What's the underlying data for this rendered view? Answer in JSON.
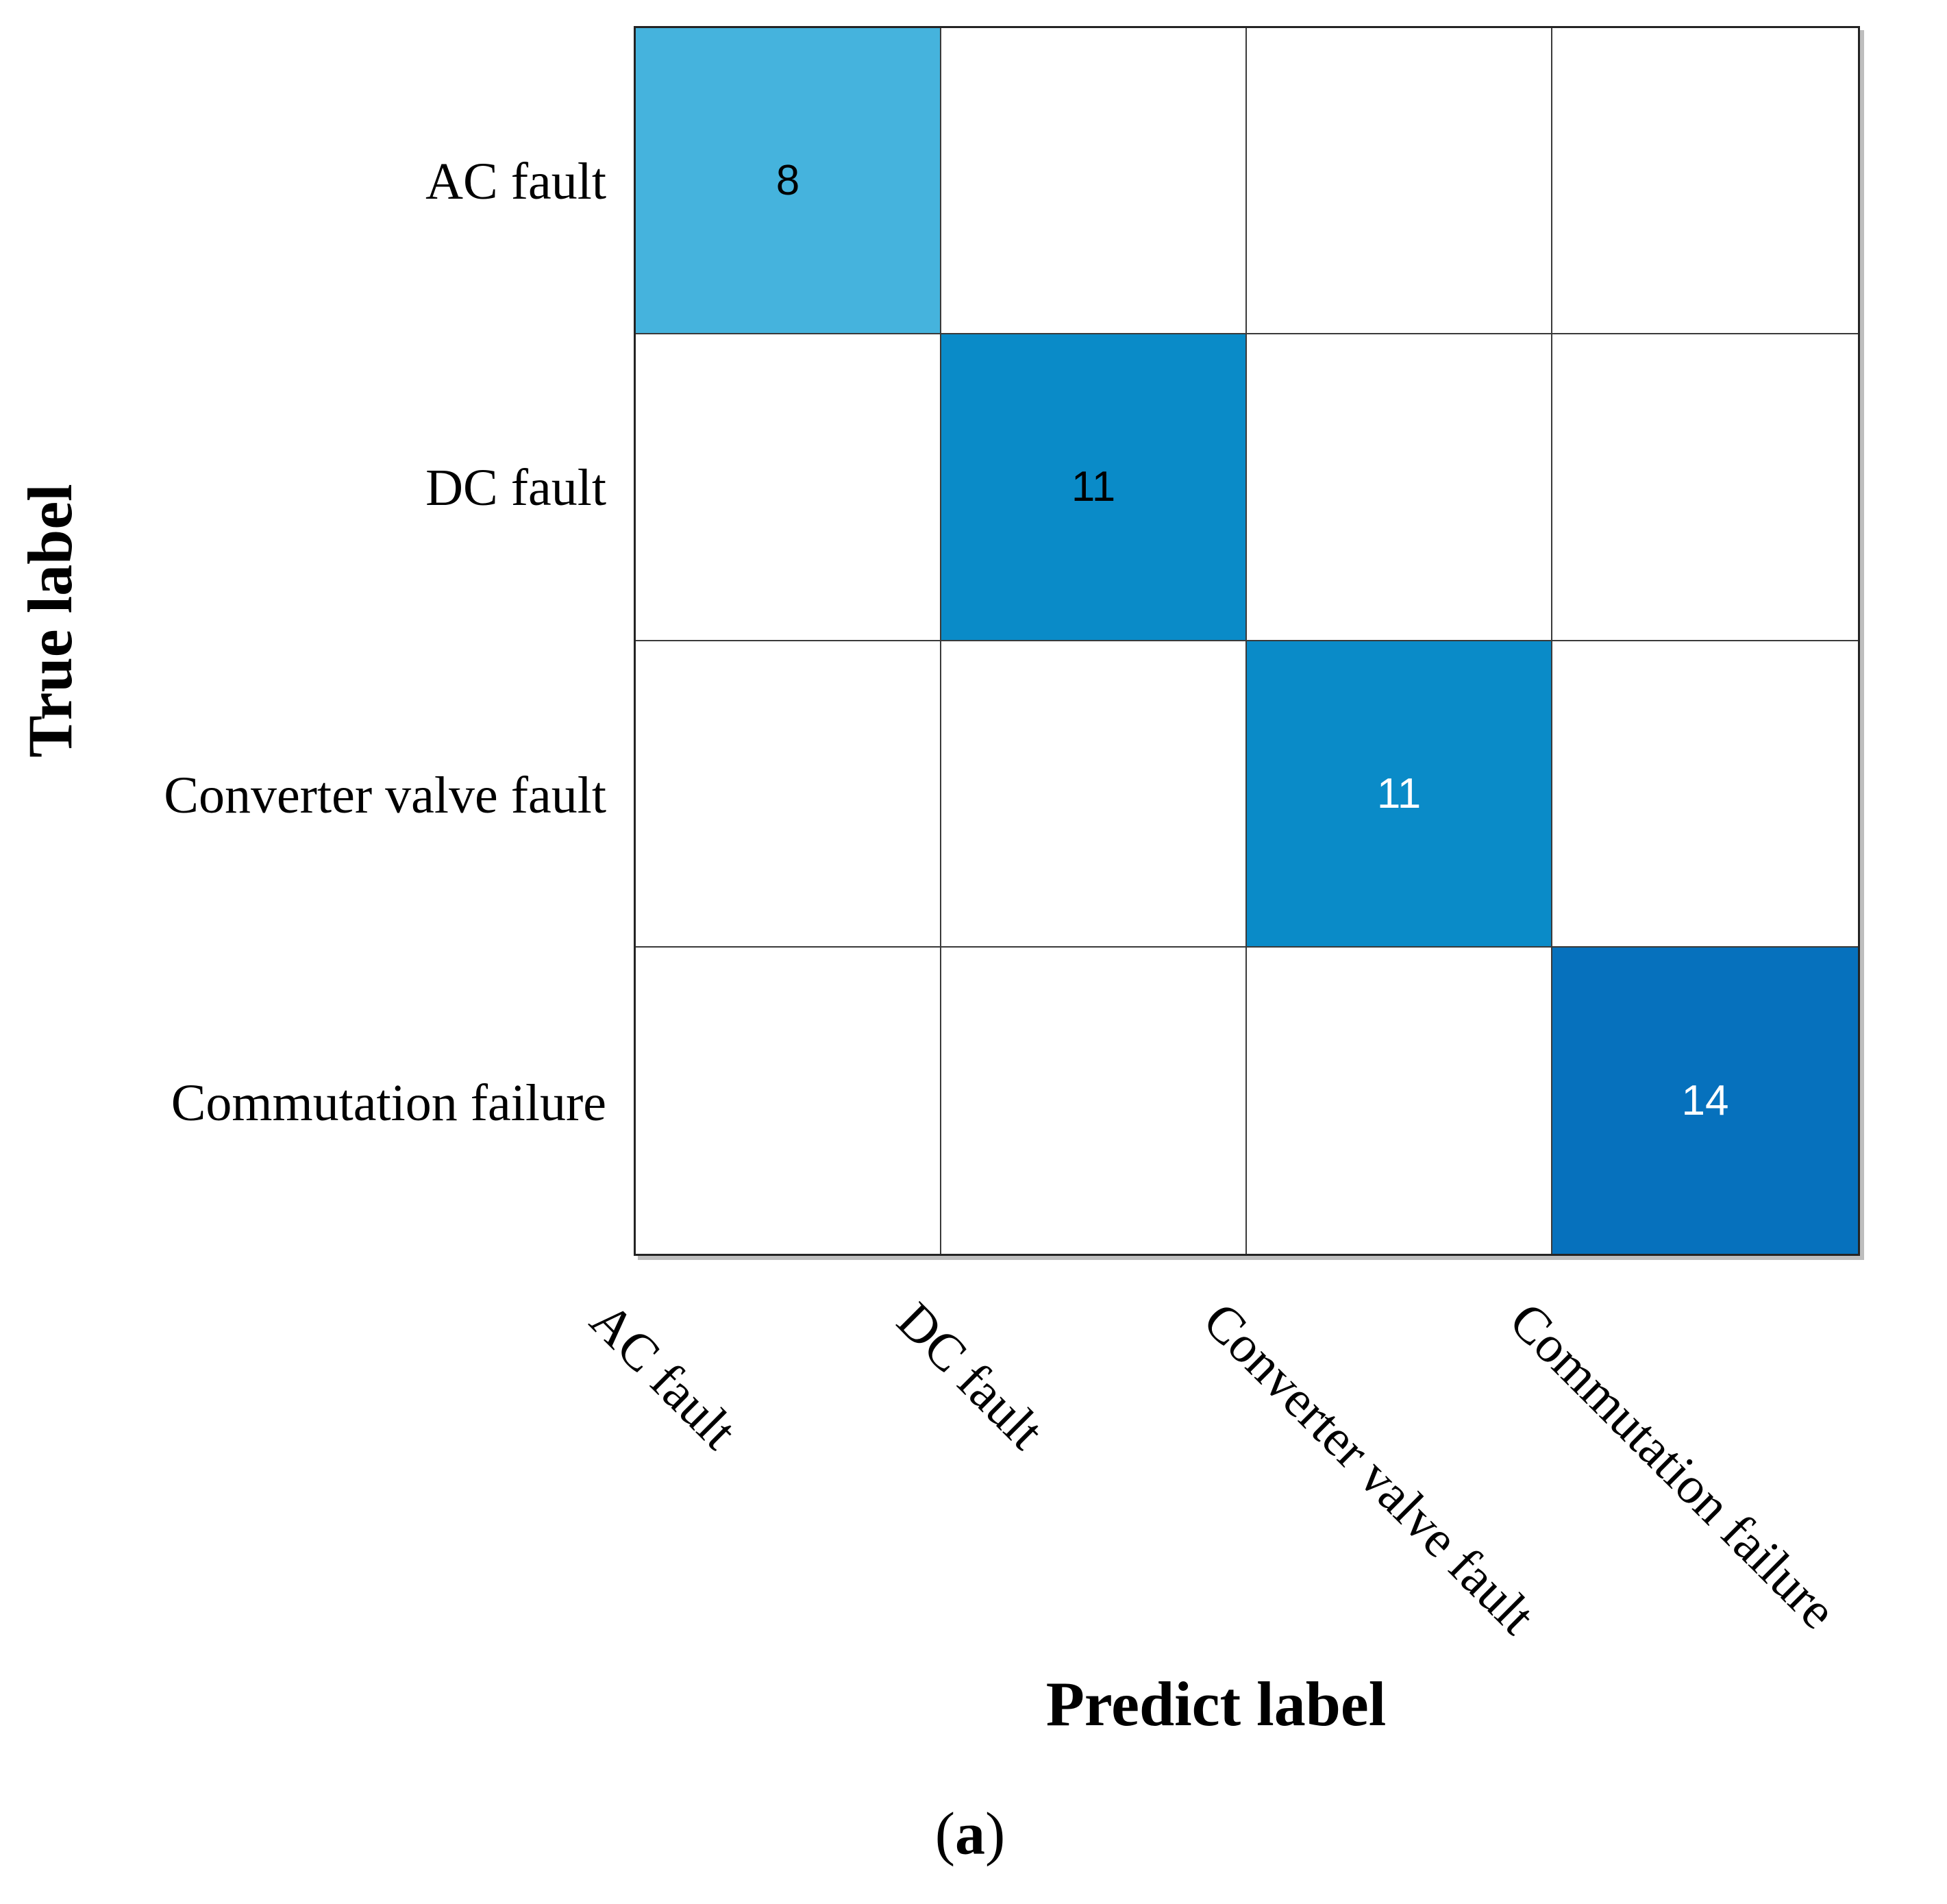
{
  "chart_data": {
    "type": "heatmap",
    "subtype": "confusion-matrix",
    "title": "",
    "xlabel": "Predict label",
    "ylabel": "True label",
    "categories": [
      "AC fault",
      "DC fault",
      "Converter valve fault",
      "Commutation failure"
    ],
    "x_tick_rotation_deg": 45,
    "matrix": [
      [
        8,
        null,
        null,
        null
      ],
      [
        null,
        11,
        null,
        null
      ],
      [
        null,
        null,
        11,
        null
      ],
      [
        null,
        null,
        null,
        14
      ]
    ],
    "cells": [
      {
        "row": 0,
        "col": 0,
        "value": "8",
        "color": "#45b3dd",
        "text_color": "#000000"
      },
      {
        "row": 1,
        "col": 1,
        "value": "11",
        "color": "#0a8bc8",
        "text_color": "#000000"
      },
      {
        "row": 2,
        "col": 2,
        "value": "11",
        "color": "#0a8bc8",
        "text_color": "#ffffff"
      },
      {
        "row": 3,
        "col": 3,
        "value": "14",
        "color": "#0671bd",
        "text_color": "#ffffff"
      }
    ],
    "empty_cell_color": "#ffffff",
    "grid_line_color": "#3a3a3a",
    "legend": "none",
    "grid_on": true
  },
  "caption": {
    "paren_open": "(",
    "letter": "a",
    "paren_close": ")"
  }
}
